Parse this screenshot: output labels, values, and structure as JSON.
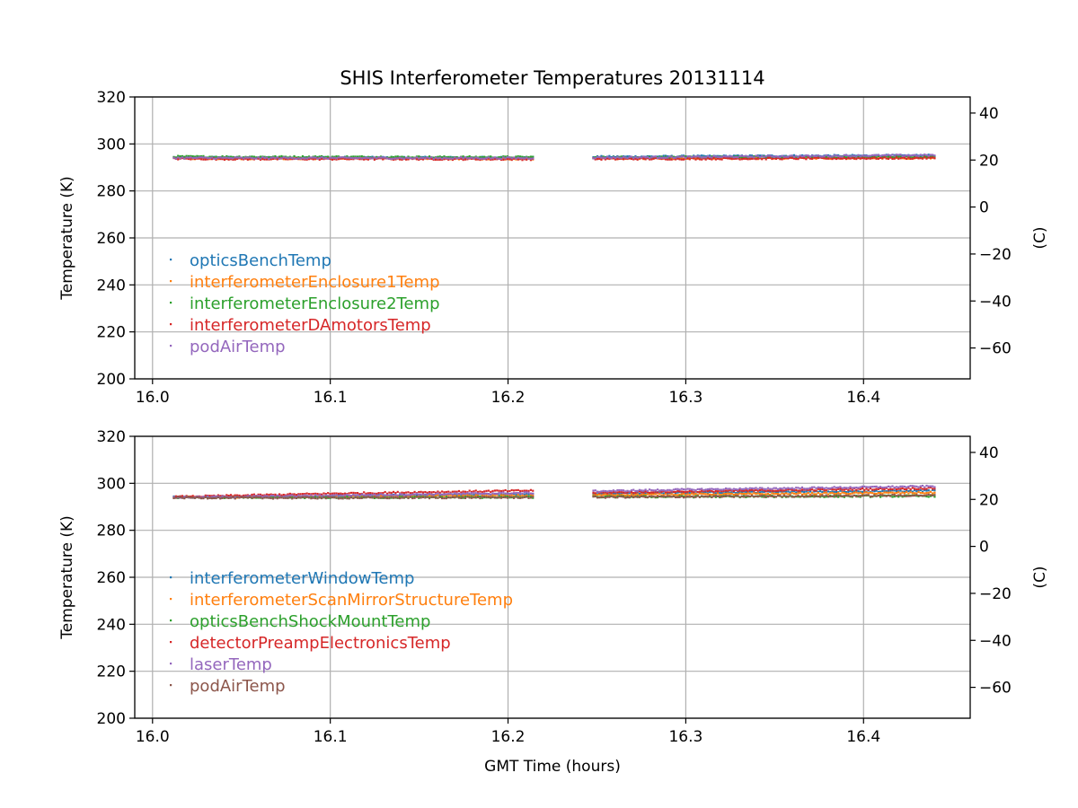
{
  "chart_data": [
    {
      "type": "scatter",
      "title": "SHIS Interferometer Temperatures 20131114",
      "xlabel": "",
      "ylabel": "Temperature (K)",
      "ylabel_right": "(C)",
      "xlim": [
        15.99,
        16.46
      ],
      "ylim": [
        200,
        320
      ],
      "ylim_right": [
        -73.15,
        46.85
      ],
      "xticks": [
        "16.0",
        "16.1",
        "16.2",
        "16.3",
        "16.4"
      ],
      "xtick_values": [
        16.0,
        16.1,
        16.2,
        16.3,
        16.4
      ],
      "yticks": [
        "200",
        "220",
        "240",
        "260",
        "280",
        "300",
        "320"
      ],
      "ytick_values": [
        200,
        220,
        240,
        260,
        280,
        300,
        320
      ],
      "yticks_right": [
        "−60",
        "−40",
        "−20",
        "0",
        "20",
        "40"
      ],
      "ytick_right_values": [
        -60,
        -40,
        -20,
        0,
        20,
        40
      ],
      "grid": true,
      "legend_position": "lower-left",
      "series": [
        {
          "name": "opticsBenchTemp",
          "color": "#1f77b4",
          "x": [
            16.012,
            16.05,
            16.1,
            16.15,
            16.214,
            16.248,
            16.3,
            16.35,
            16.4,
            16.44
          ],
          "y": [
            294.3,
            294.2,
            294.2,
            294.2,
            294.2,
            294.5,
            294.7,
            294.9,
            295.0,
            295.1
          ]
        },
        {
          "name": "interferometerEnclosure1Temp",
          "color": "#ff7f0e",
          "x": [
            16.012,
            16.05,
            16.1,
            16.15,
            16.214,
            16.248,
            16.3,
            16.35,
            16.4,
            16.44
          ],
          "y": [
            293.9,
            293.8,
            293.8,
            293.8,
            293.7,
            293.8,
            293.9,
            293.9,
            294.0,
            294.0
          ]
        },
        {
          "name": "interferometerEnclosure2Temp",
          "color": "#2ca02c",
          "x": [
            16.012,
            16.05,
            16.1,
            16.15,
            16.214,
            16.248,
            16.3,
            16.35,
            16.4,
            16.44
          ],
          "y": [
            294.6,
            294.5,
            294.5,
            294.4,
            294.4,
            294.3,
            294.4,
            294.4,
            294.5,
            294.5
          ]
        },
        {
          "name": "interferometerDAmotorsTemp",
          "color": "#d62728",
          "x": [
            16.012,
            16.05,
            16.1,
            16.15,
            16.214,
            16.248,
            16.3,
            16.35,
            16.4,
            16.44
          ],
          "y": [
            293.7,
            293.6,
            293.6,
            293.6,
            293.5,
            293.6,
            293.7,
            293.8,
            293.9,
            294.0
          ]
        },
        {
          "name": "podAirTemp",
          "color": "#9467bd",
          "x": [
            16.012,
            16.05,
            16.1,
            16.15,
            16.214,
            16.248,
            16.3,
            16.35,
            16.4,
            16.44
          ],
          "y": [
            294.1,
            294.0,
            294.0,
            294.0,
            294.0,
            294.2,
            294.4,
            294.7,
            295.0,
            295.2
          ]
        }
      ]
    },
    {
      "type": "scatter",
      "title": "",
      "xlabel": "GMT Time (hours)",
      "ylabel": "Temperature (K)",
      "ylabel_right": "(C)",
      "xlim": [
        15.99,
        16.46
      ],
      "ylim": [
        200,
        320
      ],
      "ylim_right": [
        -73.15,
        46.85
      ],
      "xticks": [
        "16.0",
        "16.1",
        "16.2",
        "16.3",
        "16.4"
      ],
      "xtick_values": [
        16.0,
        16.1,
        16.2,
        16.3,
        16.4
      ],
      "yticks": [
        "200",
        "220",
        "240",
        "260",
        "280",
        "300",
        "320"
      ],
      "ytick_values": [
        200,
        220,
        240,
        260,
        280,
        300,
        320
      ],
      "yticks_right": [
        "−60",
        "−40",
        "−20",
        "0",
        "20",
        "40"
      ],
      "ytick_right_values": [
        -60,
        -40,
        -20,
        0,
        20,
        40
      ],
      "grid": true,
      "legend_position": "lower-left",
      "series": [
        {
          "name": "interferometerWindowTemp",
          "color": "#1f77b4",
          "x": [
            16.012,
            16.05,
            16.1,
            16.15,
            16.214,
            16.248,
            16.3,
            16.35,
            16.4,
            16.44
          ],
          "y": [
            294.1,
            294.3,
            294.7,
            295.0,
            295.4,
            295.6,
            296.0,
            296.3,
            296.6,
            296.8
          ]
        },
        {
          "name": "interferometerScanMirrorStructureTemp",
          "color": "#ff7f0e",
          "x": [
            16.012,
            16.05,
            16.1,
            16.15,
            16.214,
            16.248,
            16.3,
            16.35,
            16.4,
            16.44
          ],
          "y": [
            294.0,
            294.2,
            294.4,
            294.6,
            294.8,
            295.0,
            295.3,
            295.5,
            295.8,
            296.0
          ]
        },
        {
          "name": "opticsBenchShockMountTemp",
          "color": "#2ca02c",
          "x": [
            16.012,
            16.05,
            16.1,
            16.15,
            16.214,
            16.248,
            16.3,
            16.35,
            16.4,
            16.44
          ],
          "y": [
            294.0,
            294.0,
            294.0,
            294.0,
            294.1,
            294.2,
            294.3,
            294.4,
            294.5,
            294.6
          ]
        },
        {
          "name": "detectorPreampElectronicsTemp",
          "color": "#d62728",
          "x": [
            16.012,
            16.05,
            16.1,
            16.15,
            16.214,
            16.248,
            16.3,
            16.35,
            16.4,
            16.44
          ],
          "y": [
            294.2,
            294.8,
            295.6,
            296.2,
            296.9,
            296.0,
            296.5,
            297.0,
            297.5,
            297.9
          ]
        },
        {
          "name": "laserTemp",
          "color": "#9467bd",
          "x": [
            16.012,
            16.05,
            16.1,
            16.15,
            16.214,
            16.248,
            16.3,
            16.35,
            16.4,
            16.44
          ],
          "y": [
            294.0,
            294.3,
            294.8,
            295.3,
            295.9,
            296.6,
            297.3,
            297.8,
            298.3,
            298.7
          ]
        },
        {
          "name": "podAirTemp",
          "color": "#8c564b",
          "x": [
            16.012,
            16.05,
            16.1,
            16.15,
            16.214,
            16.248,
            16.3,
            16.35,
            16.4,
            16.44
          ],
          "y": [
            293.9,
            293.8,
            293.8,
            293.9,
            294.0,
            294.1,
            294.3,
            294.5,
            294.7,
            294.9
          ]
        }
      ]
    }
  ]
}
